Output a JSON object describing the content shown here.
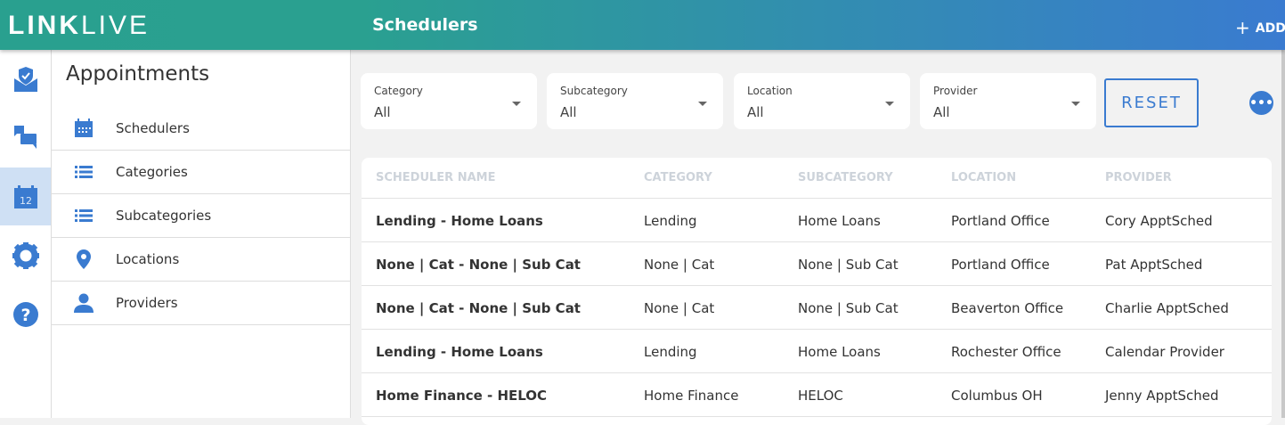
{
  "header": {
    "logo_bold": "LINK",
    "logo_light": "LIVE",
    "title": "Schedulers",
    "add_label": "ADD"
  },
  "rail": {
    "items": [
      {
        "icon": "shield-mail-icon"
      },
      {
        "icon": "chat-icon"
      },
      {
        "icon": "calendar-icon",
        "badge": "12",
        "active": true
      },
      {
        "icon": "gear-icon"
      },
      {
        "icon": "help-icon"
      }
    ]
  },
  "sidebar": {
    "title": "Appointments",
    "items": [
      {
        "label": "Schedulers",
        "icon": "calendar-icon"
      },
      {
        "label": "Categories",
        "icon": "list-icon"
      },
      {
        "label": "Subcategories",
        "icon": "list-icon"
      },
      {
        "label": "Locations",
        "icon": "location-pin-icon"
      },
      {
        "label": "Providers",
        "icon": "person-icon"
      }
    ]
  },
  "filters": [
    {
      "label": "Category",
      "value": "All"
    },
    {
      "label": "Subcategory",
      "value": "All"
    },
    {
      "label": "Location",
      "value": "All"
    },
    {
      "label": "Provider",
      "value": "All"
    }
  ],
  "reset_label": "RESET",
  "more_label": "•••",
  "table": {
    "columns": [
      "SCHEDULER NAME",
      "CATEGORY",
      "SUBCATEGORY",
      "LOCATION",
      "PROVIDER"
    ],
    "rows": [
      [
        "Lending - Home Loans",
        "Lending",
        "Home Loans",
        "Portland Office",
        "Cory ApptSched"
      ],
      [
        "None | Cat - None | Sub Cat",
        "None | Cat",
        "None | Sub Cat",
        "Portland Office",
        "Pat ApptSched"
      ],
      [
        "None | Cat - None | Sub Cat",
        "None | Cat",
        "None | Sub Cat",
        "Beaverton Office",
        "Charlie ApptSched"
      ],
      [
        "Lending - Home Loans",
        "Lending",
        "Home Loans",
        "Rochester Office",
        "Calendar Provider"
      ],
      [
        "Home Finance - HELOC",
        "Home Finance",
        "HELOC",
        "Columbus OH",
        "Jenny ApptSched"
      ]
    ]
  },
  "colors": {
    "accent": "#3a7bd0",
    "header_start": "#2aa090",
    "active_bg": "#cfe0f4"
  }
}
